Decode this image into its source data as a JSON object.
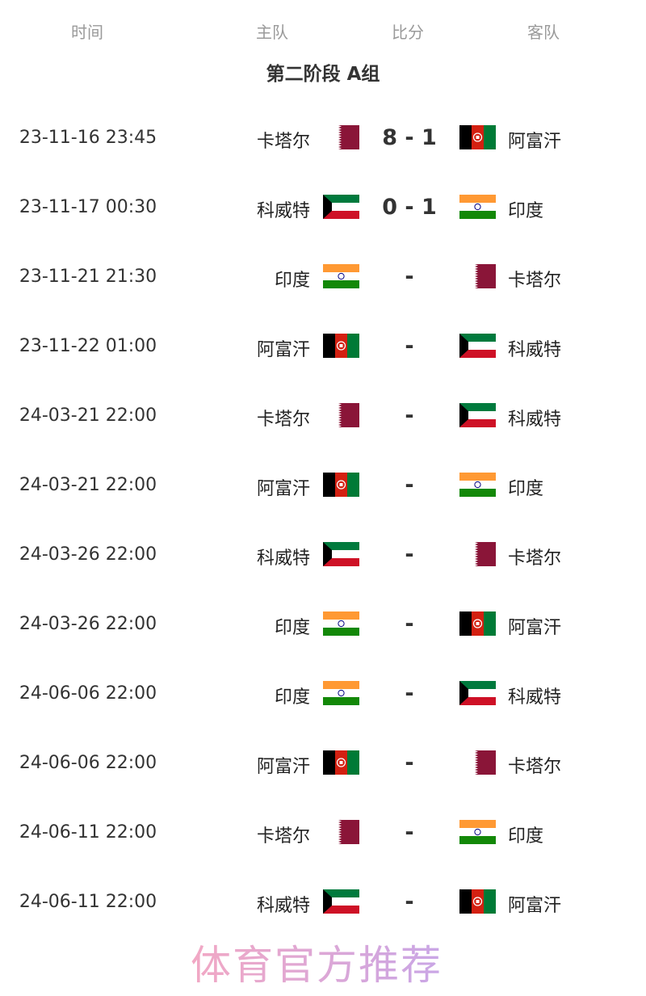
{
  "header": {
    "time": "时间",
    "home": "主队",
    "score": "比分",
    "away": "客队"
  },
  "group_title": "第二阶段 A组",
  "matches": [
    {
      "time": "23-11-16 23:45",
      "home": "卡塔尔",
      "home_flag": "qatar",
      "score": "8 - 1",
      "away": "阿富汗",
      "away_flag": "afghanistan"
    },
    {
      "time": "23-11-17 00:30",
      "home": "科威特",
      "home_flag": "kuwait",
      "score": "0 - 1",
      "away": "印度",
      "away_flag": "india"
    },
    {
      "time": "23-11-21 21:30",
      "home": "印度",
      "home_flag": "india",
      "score": "-",
      "away": "卡塔尔",
      "away_flag": "qatar"
    },
    {
      "time": "23-11-22 01:00",
      "home": "阿富汗",
      "home_flag": "afghanistan",
      "score": "-",
      "away": "科威特",
      "away_flag": "kuwait"
    },
    {
      "time": "24-03-21 22:00",
      "home": "卡塔尔",
      "home_flag": "qatar",
      "score": "-",
      "away": "科威特",
      "away_flag": "kuwait"
    },
    {
      "time": "24-03-21 22:00",
      "home": "阿富汗",
      "home_flag": "afghanistan",
      "score": "-",
      "away": "印度",
      "away_flag": "india"
    },
    {
      "time": "24-03-26 22:00",
      "home": "科威特",
      "home_flag": "kuwait",
      "score": "-",
      "away": "卡塔尔",
      "away_flag": "qatar"
    },
    {
      "time": "24-03-26 22:00",
      "home": "印度",
      "home_flag": "india",
      "score": "-",
      "away": "阿富汗",
      "away_flag": "afghanistan"
    },
    {
      "time": "24-06-06 22:00",
      "home": "印度",
      "home_flag": "india",
      "score": "-",
      "away": "科威特",
      "away_flag": "kuwait"
    },
    {
      "time": "24-06-06 22:00",
      "home": "阿富汗",
      "home_flag": "afghanistan",
      "score": "-",
      "away": "卡塔尔",
      "away_flag": "qatar"
    },
    {
      "time": "24-06-11 22:00",
      "home": "卡塔尔",
      "home_flag": "qatar",
      "score": "-",
      "away": "印度",
      "away_flag": "india"
    },
    {
      "time": "24-06-11 22:00",
      "home": "科威特",
      "home_flag": "kuwait",
      "score": "-",
      "away": "阿富汗",
      "away_flag": "afghanistan"
    }
  ],
  "watermark": "体育官方推荐"
}
